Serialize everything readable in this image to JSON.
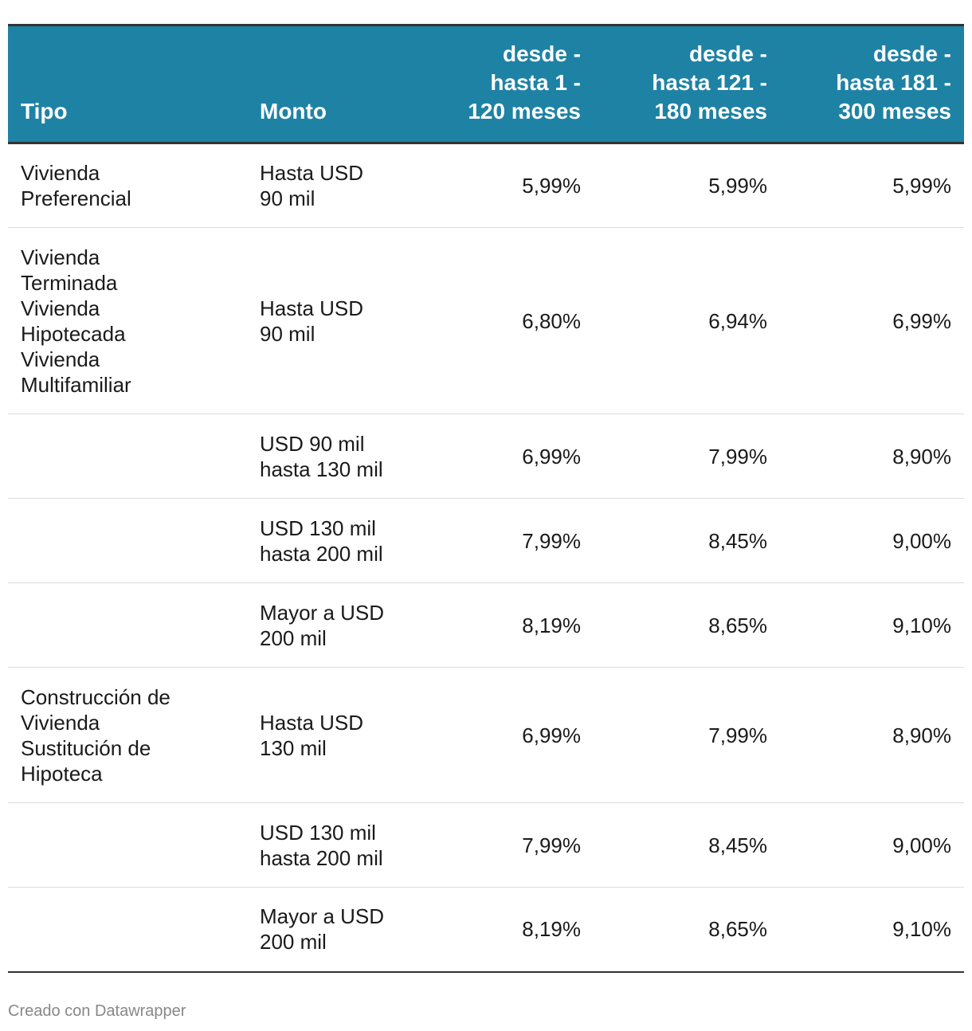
{
  "chart_data": {
    "type": "table",
    "header_color": "#1e82a5",
    "columns": [
      "Tipo",
      "Monto",
      "desde - hasta 1 - 120 meses",
      "desde - hasta 121 - 180 meses",
      "desde - hasta 181 - 300 meses"
    ],
    "rows": [
      [
        "Vivienda Preferencial",
        "Hasta USD 90 mil",
        "5,99%",
        "5,99%",
        "5,99%"
      ],
      [
        "Vivienda Terminada Vivienda Hipotecada Vivienda Multifamiliar",
        "Hasta USD 90 mil",
        "6,80%",
        "6,94%",
        "6,99%"
      ],
      [
        "",
        "USD 90 mil hasta 130 mil",
        "6,99%",
        "7,99%",
        "8,90%"
      ],
      [
        "",
        "USD 130 mil hasta 200 mil",
        "7,99%",
        "8,45%",
        "9,00%"
      ],
      [
        "",
        "Mayor a USD 200 mil",
        "8,19%",
        "8,65%",
        "9,10%"
      ],
      [
        "Construcción de Vivienda Sustitución de Hipoteca",
        "Hasta USD 130 mil",
        "6,99%",
        "7,99%",
        "8,90%"
      ],
      [
        "",
        "USD 130 mil hasta 200 mil",
        "7,99%",
        "8,45%",
        "9,00%"
      ],
      [
        "",
        "Mayor a USD 200 mil",
        "8,19%",
        "8,65%",
        "9,10%"
      ]
    ]
  },
  "footer": {
    "credit": "Creado con Datawrapper"
  }
}
